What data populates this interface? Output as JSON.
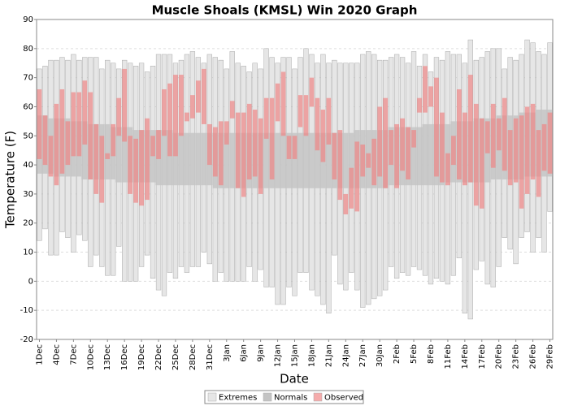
{
  "chart_data": {
    "type": "range-bar",
    "title": "Muscle Shoals (KMSL) Win 2020 Graph",
    "x_label": "Date",
    "y_label": "Temperature (F)",
    "categories": [
      "1Dec",
      null,
      null,
      "4Dec",
      null,
      null,
      "7Dec",
      null,
      null,
      "10Dec",
      null,
      null,
      "13Dec",
      null,
      null,
      "16Dec",
      null,
      null,
      "19Dec",
      null,
      null,
      "22Dec",
      null,
      null,
      "25Dec",
      null,
      null,
      "28Dec",
      null,
      null,
      "31Dec",
      null,
      null,
      "3Jan",
      null,
      null,
      "6Jan",
      null,
      null,
      "9Jan",
      null,
      null,
      "12Jan",
      null,
      null,
      "15Jan",
      null,
      null,
      "18Jan",
      null,
      null,
      "21Jan",
      null,
      null,
      "24Jan",
      null,
      null,
      "27Jan",
      null,
      null,
      "30Jan",
      null,
      null,
      "2Feb",
      null,
      null,
      "5Feb",
      null,
      null,
      "8Feb",
      null,
      null,
      "11Feb",
      null,
      null,
      "14Feb",
      null,
      null,
      "17Feb",
      null,
      null,
      "20Feb",
      null,
      null,
      "23Feb",
      null,
      null,
      "26Feb",
      null,
      null,
      "29Feb"
    ],
    "series": [
      {
        "name": "Extremes",
        "color": "#e6e6e6",
        "high": [
          73,
          74,
          76,
          76,
          77,
          76,
          78,
          76,
          77,
          77,
          77,
          73,
          76,
          75,
          73,
          76,
          75,
          74,
          75,
          72,
          74,
          78,
          78,
          78,
          75,
          76,
          78,
          79,
          77,
          75,
          78,
          77,
          76,
          73,
          79,
          75,
          74,
          72,
          75,
          73,
          80,
          77,
          75,
          77,
          77,
          73,
          77,
          80,
          78,
          75,
          78,
          75,
          76,
          75,
          75,
          75,
          75,
          78,
          79,
          78,
          76,
          76,
          77,
          78,
          77,
          75,
          79,
          74,
          78,
          72,
          77,
          76,
          79,
          78,
          78,
          75,
          83,
          76,
          77,
          79,
          80,
          80,
          73,
          77,
          76,
          78,
          83,
          82,
          79,
          78,
          82
        ],
        "low": [
          14,
          18,
          9,
          9,
          17,
          15,
          10,
          16,
          14,
          5,
          9,
          5,
          2,
          2,
          12,
          0,
          0,
          0,
          5,
          9,
          1,
          -3,
          -5,
          3,
          1,
          5,
          3,
          5,
          5,
          10,
          6,
          0,
          3,
          0,
          0,
          0,
          0,
          5,
          0,
          4,
          -2,
          -2,
          -8,
          -8,
          -2,
          -5,
          3,
          3,
          -3,
          -5,
          -8,
          -11,
          9,
          -1,
          -3,
          3,
          -3,
          -9,
          -8,
          -6,
          -5,
          -3,
          5,
          1,
          3,
          2,
          5,
          4,
          2,
          -1,
          1,
          0,
          -1,
          2,
          8,
          -11,
          -13,
          4,
          7,
          -1,
          -2,
          5,
          15,
          11,
          6,
          15,
          17,
          10,
          15,
          10,
          24
        ]
      },
      {
        "name": "Normals",
        "color": "#c4c4c4",
        "high": [
          57,
          57,
          56,
          56,
          56,
          56,
          55,
          55,
          55,
          54,
          54,
          54,
          54,
          53,
          53,
          53,
          53,
          52,
          52,
          52,
          52,
          52,
          52,
          52,
          51,
          51,
          51,
          51,
          51,
          51,
          51,
          51,
          51,
          51,
          51,
          51,
          51,
          51,
          51,
          51,
          51,
          51,
          51,
          51,
          51,
          51,
          51,
          51,
          51,
          51,
          51,
          51,
          51,
          51,
          51,
          51,
          52,
          52,
          52,
          52,
          52,
          52,
          53,
          53,
          53,
          53,
          53,
          53,
          54,
          54,
          54,
          54,
          54,
          55,
          55,
          55,
          55,
          56,
          56,
          56,
          56,
          57,
          57,
          57,
          57,
          58,
          58,
          58,
          59,
          59,
          59
        ],
        "low": [
          37,
          37,
          37,
          36,
          36,
          36,
          36,
          36,
          35,
          35,
          35,
          35,
          35,
          35,
          34,
          34,
          34,
          34,
          34,
          34,
          34,
          33,
          33,
          33,
          33,
          33,
          33,
          33,
          33,
          33,
          33,
          32,
          32,
          32,
          32,
          32,
          32,
          32,
          32,
          32,
          32,
          32,
          32,
          32,
          32,
          32,
          32,
          32,
          32,
          32,
          32,
          32,
          32,
          32,
          32,
          32,
          32,
          32,
          32,
          32,
          32,
          32,
          33,
          33,
          33,
          33,
          33,
          33,
          33,
          33,
          33,
          33,
          34,
          34,
          34,
          34,
          34,
          34,
          34,
          34,
          35,
          35,
          35,
          35,
          35,
          35,
          36,
          36,
          36,
          36,
          36
        ]
      },
      {
        "name": "Observed",
        "color": "#f08080",
        "high": [
          66,
          57,
          50,
          61,
          66,
          55,
          65,
          65,
          69,
          65,
          54,
          50,
          44,
          54,
          63,
          73,
          50,
          49,
          52,
          56,
          50,
          52,
          66,
          68,
          71,
          71,
          58,
          64,
          69,
          73,
          54,
          53,
          55,
          55,
          62,
          58,
          58,
          61,
          59,
          56,
          63,
          63,
          68,
          72,
          50,
          50,
          64,
          64,
          70,
          63,
          59,
          63,
          51,
          52,
          30,
          39,
          48,
          47,
          44,
          49,
          60,
          63,
          52,
          54,
          56,
          53,
          52,
          63,
          74,
          67,
          70,
          58,
          44,
          50,
          66,
          58,
          71,
          61,
          56,
          55,
          61,
          56,
          63,
          52,
          56,
          57,
          60,
          61,
          52,
          54,
          58
        ],
        "low": [
          42,
          40,
          36,
          33,
          37,
          40,
          43,
          43,
          47,
          35,
          30,
          27,
          42,
          43,
          50,
          48,
          30,
          27,
          26,
          28,
          43,
          42,
          50,
          43,
          43,
          50,
          55,
          56,
          58,
          54,
          40,
          36,
          33,
          47,
          56,
          32,
          29,
          35,
          36,
          30,
          49,
          35,
          55,
          50,
          42,
          42,
          53,
          50,
          60,
          45,
          41,
          47,
          35,
          28,
          23,
          25,
          24,
          36,
          39,
          33,
          36,
          32,
          40,
          32,
          38,
          35,
          46,
          58,
          58,
          60,
          36,
          34,
          33,
          40,
          35,
          33,
          34,
          26,
          25,
          44,
          39,
          45,
          38,
          33,
          34,
          25,
          30,
          35,
          29,
          38,
          37
        ]
      }
    ],
    "ylim": [
      -20,
      90
    ],
    "yticks": [
      -20,
      -10,
      0,
      10,
      20,
      30,
      40,
      50,
      60,
      70,
      80,
      90
    ],
    "grid": true,
    "legend": "bottom"
  }
}
